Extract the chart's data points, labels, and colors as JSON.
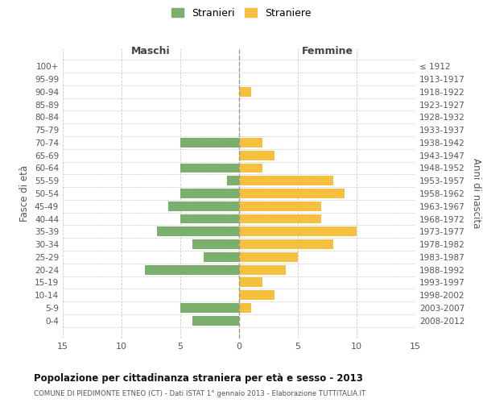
{
  "age_groups": [
    "100+",
    "95-99",
    "90-94",
    "85-89",
    "80-84",
    "75-79",
    "70-74",
    "65-69",
    "60-64",
    "55-59",
    "50-54",
    "45-49",
    "40-44",
    "35-39",
    "30-34",
    "25-29",
    "20-24",
    "15-19",
    "10-14",
    "5-9",
    "0-4"
  ],
  "birth_years": [
    "≤ 1912",
    "1913-1917",
    "1918-1922",
    "1923-1927",
    "1928-1932",
    "1933-1937",
    "1938-1942",
    "1943-1947",
    "1948-1952",
    "1953-1957",
    "1958-1962",
    "1963-1967",
    "1968-1972",
    "1973-1977",
    "1978-1982",
    "1983-1987",
    "1988-1992",
    "1993-1997",
    "1998-2002",
    "2003-2007",
    "2008-2012"
  ],
  "maschi": [
    0,
    0,
    0,
    0,
    0,
    0,
    5,
    0,
    5,
    1,
    5,
    6,
    5,
    7,
    4,
    3,
    8,
    0,
    0,
    5,
    4
  ],
  "femmine": [
    0,
    0,
    1,
    0,
    0,
    0,
    2,
    3,
    2,
    8,
    9,
    7,
    7,
    10,
    8,
    5,
    4,
    2,
    3,
    1,
    0
  ],
  "maschi_color": "#7aaf6e",
  "femmine_color": "#f5c040",
  "title": "Popolazione per cittadinanza straniera per età e sesso - 2013",
  "subtitle": "COMUNE DI PIEDIMONTE ETNEO (CT) - Dati ISTAT 1° gennaio 2013 - Elaborazione TUTTITALIA.IT",
  "xlabel_left": "Maschi",
  "xlabel_right": "Femmine",
  "ylabel_left": "Fasce di età",
  "ylabel_right": "Anni di nascita",
  "legend_maschi": "Stranieri",
  "legend_femmine": "Straniere",
  "xlim": 15,
  "background_color": "#ffffff",
  "grid_color": "#cccccc"
}
